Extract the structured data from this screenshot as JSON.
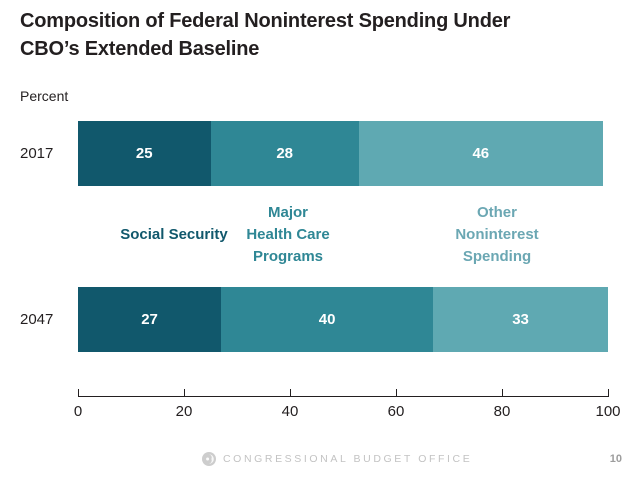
{
  "title": {
    "line1": "Composition of Federal Noninterest Spending Under",
    "line2": "CBO’s Extended Baseline"
  },
  "units_label": "Percent",
  "chart_data": {
    "type": "bar",
    "orientation": "horizontal-stacked",
    "title": "Composition of Federal Noninterest Spending Under CBO’s Extended Baseline",
    "units": "Percent",
    "categories": [
      "2017",
      "2047"
    ],
    "series": [
      {
        "name": "Social Security",
        "label_lines": [
          "Social Security"
        ],
        "color": "#11586C",
        "label_color": "#11586C",
        "values": [
          25,
          27
        ]
      },
      {
        "name": "Major Health Care Programs",
        "label_lines": [
          "Major",
          "Health Care",
          "Programs"
        ],
        "color": "#2F8795",
        "label_color": "#2F8795",
        "values": [
          28,
          40
        ]
      },
      {
        "name": "Other Noninterest Spending",
        "label_lines": [
          "Other",
          "Noninterest",
          "Spending"
        ],
        "color": "#5FA9B2",
        "label_color": "#6BA7B3",
        "values": [
          46,
          33
        ]
      }
    ],
    "xlim": [
      0,
      100
    ],
    "x_ticks": [
      0,
      20,
      40,
      60,
      80,
      100
    ],
    "grid": false,
    "value_labels_shown": true,
    "legend_position": "between-bars"
  },
  "footer": {
    "org": "CONGRESSIONAL BUDGET OFFICE",
    "page": "10"
  }
}
